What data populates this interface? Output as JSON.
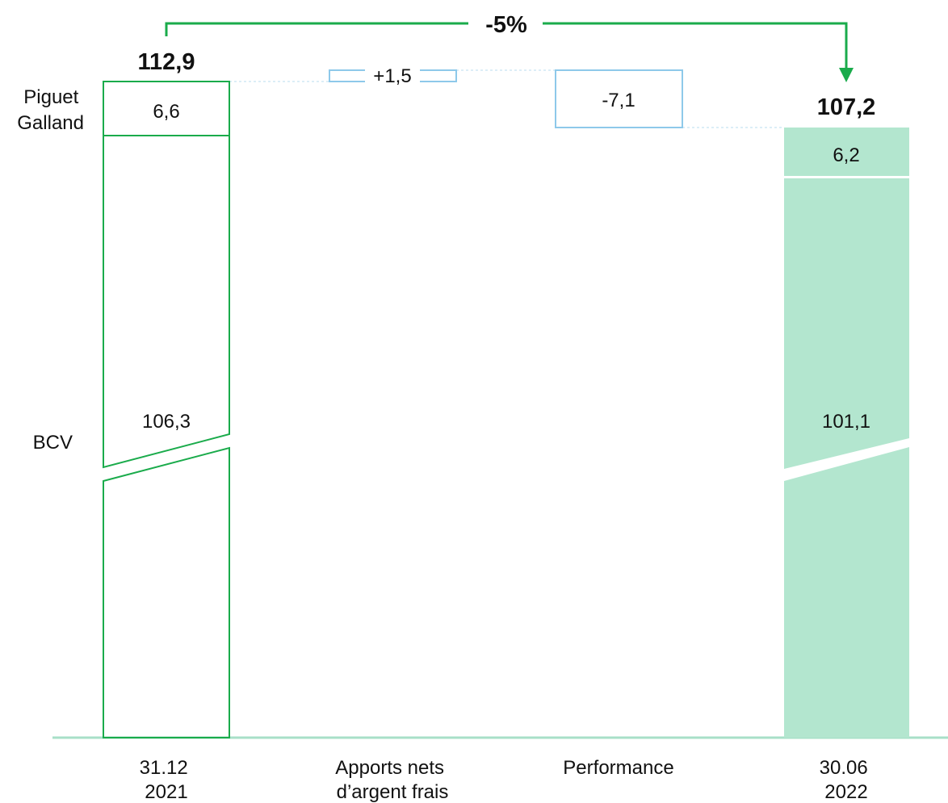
{
  "chart_data": {
    "type": "bar",
    "subtype": "waterfall",
    "title": "",
    "categories": [
      [
        "31.12",
        "2021"
      ],
      [
        "Apports nets",
        "d’argent frais"
      ],
      [
        "Performance"
      ],
      [
        "30.06",
        "2022"
      ]
    ],
    "segment_labels": {
      "piguet_galland": [
        "Piguet",
        "Galland"
      ],
      "bcv": [
        "BCV"
      ]
    },
    "start": {
      "total": "112,9",
      "bcv": "106,3",
      "piguet_galland": "6,6",
      "total_value": 112.9,
      "bcv_value": 106.3,
      "piguet_galland_value": 6.6
    },
    "changes": [
      {
        "label": "+1,5",
        "value": 1.5
      },
      {
        "label": "-7,1",
        "value": -7.1
      }
    ],
    "end": {
      "total": "107,2",
      "bcv": "101,1",
      "piguet_galland": "6,2",
      "total_value": 107.2,
      "bcv_value": 101.1,
      "piguet_galland_value": 6.2
    },
    "overall_change": "-5%",
    "axis_break": true,
    "colors": {
      "start_outline": "#1aab4b",
      "end_fill": "#b3e6cf",
      "change_outline": "#8ec9ea",
      "connector": "#1aab4b",
      "baseline": "#a8e0c8",
      "guide": "#b9dcef",
      "text": "#111111"
    }
  }
}
